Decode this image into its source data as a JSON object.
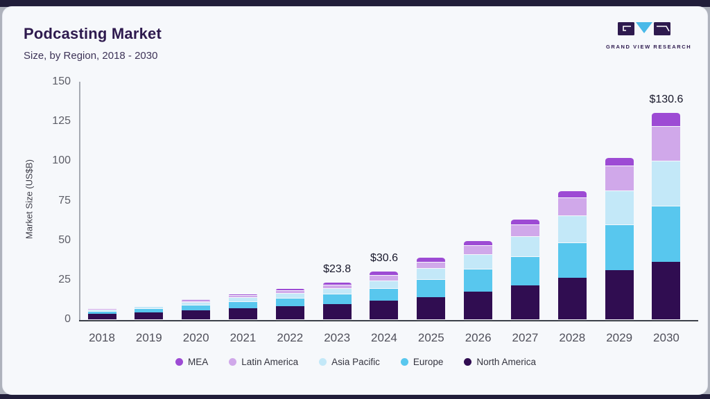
{
  "page": {
    "title": "Podcasting Market",
    "subtitle": "Size, by Region, 2018 - 2030"
  },
  "logo": {
    "text": "GRAND VIEW RESEARCH"
  },
  "chart_data": {
    "type": "bar",
    "stacked": true,
    "title": "Podcasting Market",
    "subtitle": "Size, by Region, 2018 - 2030",
    "xlabel": "",
    "ylabel": "Market Size (US$B)",
    "ylim": [
      0,
      150
    ],
    "yticks": [
      0,
      25,
      50,
      75,
      100,
      125,
      150
    ],
    "grid": false,
    "legend_position": "bottom",
    "categories": [
      "2018",
      "2019",
      "2020",
      "2021",
      "2022",
      "2023",
      "2024",
      "2025",
      "2026",
      "2027",
      "2028",
      "2029",
      "2030"
    ],
    "series": [
      {
        "name": "North America",
        "color": "#300d51",
        "values": [
          3.3,
          4.2,
          5.6,
          7.0,
          8.3,
          9.7,
          11.9,
          14.2,
          17.7,
          21.3,
          26.1,
          31.2,
          36.2
        ]
      },
      {
        "name": "Europe",
        "color": "#58c7ee",
        "values": [
          2.0,
          2.6,
          3.4,
          4.4,
          5.3,
          6.4,
          7.8,
          11.0,
          14.2,
          18.3,
          22.5,
          28.9,
          35.5
        ]
      },
      {
        "name": "Asia Pacific",
        "color": "#c3e8f8",
        "values": [
          1.0,
          1.3,
          1.9,
          2.4,
          3.0,
          3.6,
          4.9,
          7.0,
          9.3,
          13.0,
          16.9,
          21.3,
          28.6
        ]
      },
      {
        "name": "Latin America",
        "color": "#d0a8ea",
        "values": [
          0.6,
          0.8,
          1.1,
          1.5,
          1.8,
          2.3,
          3.5,
          4.2,
          5.8,
          7.4,
          11.6,
          15.7,
          21.7
        ]
      },
      {
        "name": "MEA",
        "color": "#9d4bd4",
        "values": [
          0.4,
          0.5,
          0.7,
          0.9,
          1.2,
          1.8,
          2.5,
          3.0,
          3.0,
          3.5,
          4.1,
          5.4,
          8.6
        ]
      }
    ],
    "totals": [
      7.3,
      9.4,
      12.7,
      16.2,
      19.6,
      23.8,
      30.6,
      39.4,
      50.0,
      63.5,
      81.2,
      102.5,
      130.6
    ],
    "legend": [
      "MEA",
      "Latin America",
      "Asia Pacific",
      "Europe",
      "North America"
    ],
    "annotations": [
      {
        "category": "2023",
        "label": "$23.8"
      },
      {
        "category": "2024",
        "label": "$30.6"
      },
      {
        "category": "2030",
        "label": "$130.6"
      }
    ]
  }
}
